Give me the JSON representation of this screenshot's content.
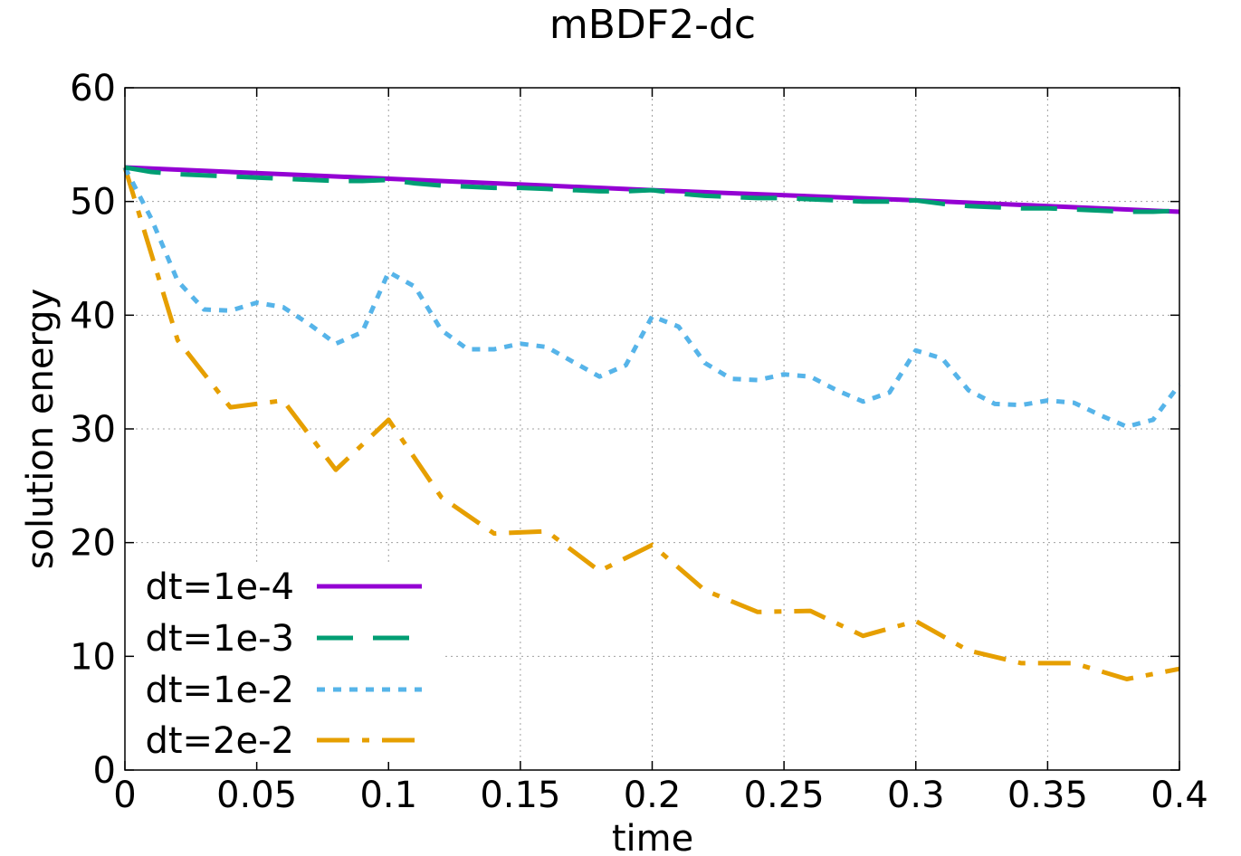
{
  "chart_data": {
    "type": "line",
    "title": "mBDF2-dc",
    "xlabel": "time",
    "ylabel": "solution energy",
    "xlim": [
      0,
      0.4
    ],
    "ylim": [
      0,
      60
    ],
    "xticks": [
      0,
      0.05,
      0.1,
      0.15,
      0.2,
      0.25,
      0.3,
      0.35,
      0.4
    ],
    "xtick_labels": [
      "0",
      "0.05",
      "0.1",
      "0.15",
      "0.2",
      "0.25",
      "0.3",
      "0.35",
      "0.4"
    ],
    "yticks": [
      0,
      10,
      20,
      30,
      40,
      50,
      60
    ],
    "ytick_labels": [
      "0",
      "10",
      "20",
      "30",
      "40",
      "50",
      "60"
    ],
    "grid": true,
    "legend_position": "bottom-left",
    "series": [
      {
        "name": "dt=1e-4",
        "color": "#9400d3",
        "dash": "solid",
        "x": [
          0,
          0.1,
          0.2,
          0.3,
          0.4
        ],
        "y": [
          53.0,
          52.0,
          51.0,
          50.1,
          49.1
        ]
      },
      {
        "name": "dt=1e-3",
        "color": "#009e73",
        "dash": "long-dash",
        "x": [
          0,
          0.01,
          0.02,
          0.03,
          0.04,
          0.05,
          0.06,
          0.07,
          0.08,
          0.09,
          0.1,
          0.11,
          0.12,
          0.13,
          0.14,
          0.15,
          0.16,
          0.17,
          0.18,
          0.19,
          0.2,
          0.21,
          0.22,
          0.23,
          0.24,
          0.25,
          0.26,
          0.27,
          0.28,
          0.29,
          0.3,
          0.31,
          0.32,
          0.33,
          0.34,
          0.35,
          0.36,
          0.37,
          0.38,
          0.39,
          0.4
        ],
        "y": [
          53.0,
          52.6,
          52.4,
          52.3,
          52.2,
          52.1,
          52.0,
          51.9,
          51.8,
          51.8,
          51.9,
          51.6,
          51.4,
          51.3,
          51.2,
          51.2,
          51.1,
          51.0,
          50.9,
          50.9,
          51.0,
          50.7,
          50.5,
          50.4,
          50.3,
          50.3,
          50.2,
          50.1,
          50.0,
          50.0,
          50.1,
          49.8,
          49.6,
          49.5,
          49.4,
          49.4,
          49.3,
          49.2,
          49.1,
          49.1,
          49.2
        ]
      },
      {
        "name": "dt=1e-2",
        "color": "#56b4e9",
        "dash": "short-dash",
        "x": [
          0,
          0.01,
          0.02,
          0.03,
          0.04,
          0.05,
          0.06,
          0.07,
          0.08,
          0.09,
          0.1,
          0.11,
          0.12,
          0.13,
          0.14,
          0.15,
          0.16,
          0.17,
          0.18,
          0.19,
          0.2,
          0.21,
          0.22,
          0.23,
          0.24,
          0.25,
          0.26,
          0.27,
          0.28,
          0.29,
          0.3,
          0.31,
          0.32,
          0.33,
          0.34,
          0.35,
          0.36,
          0.37,
          0.38,
          0.39,
          0.4
        ],
        "y": [
          53.0,
          48.5,
          43.0,
          40.5,
          40.4,
          41.1,
          40.7,
          39.2,
          37.5,
          38.5,
          43.8,
          42.5,
          38.7,
          37.0,
          37.0,
          37.5,
          37.2,
          35.9,
          34.6,
          35.6,
          39.9,
          39.0,
          35.8,
          34.4,
          34.3,
          34.8,
          34.6,
          33.4,
          32.4,
          33.2,
          36.9,
          36.2,
          33.4,
          32.2,
          32.1,
          32.5,
          32.3,
          31.2,
          30.2,
          30.8,
          33.9
        ]
      },
      {
        "name": "dt=2e-2",
        "color": "#e69f00",
        "dash": "dash-dot",
        "x": [
          0,
          0.02,
          0.04,
          0.06,
          0.08,
          0.1,
          0.12,
          0.14,
          0.16,
          0.18,
          0.2,
          0.22,
          0.24,
          0.26,
          0.28,
          0.3,
          0.32,
          0.34,
          0.36,
          0.38,
          0.4
        ],
        "y": [
          53.0,
          37.8,
          31.9,
          32.5,
          26.4,
          30.8,
          24.0,
          20.8,
          21.0,
          17.5,
          19.8,
          15.8,
          13.9,
          14.0,
          11.8,
          13.1,
          10.5,
          9.4,
          9.4,
          8.0,
          8.9
        ]
      }
    ]
  }
}
